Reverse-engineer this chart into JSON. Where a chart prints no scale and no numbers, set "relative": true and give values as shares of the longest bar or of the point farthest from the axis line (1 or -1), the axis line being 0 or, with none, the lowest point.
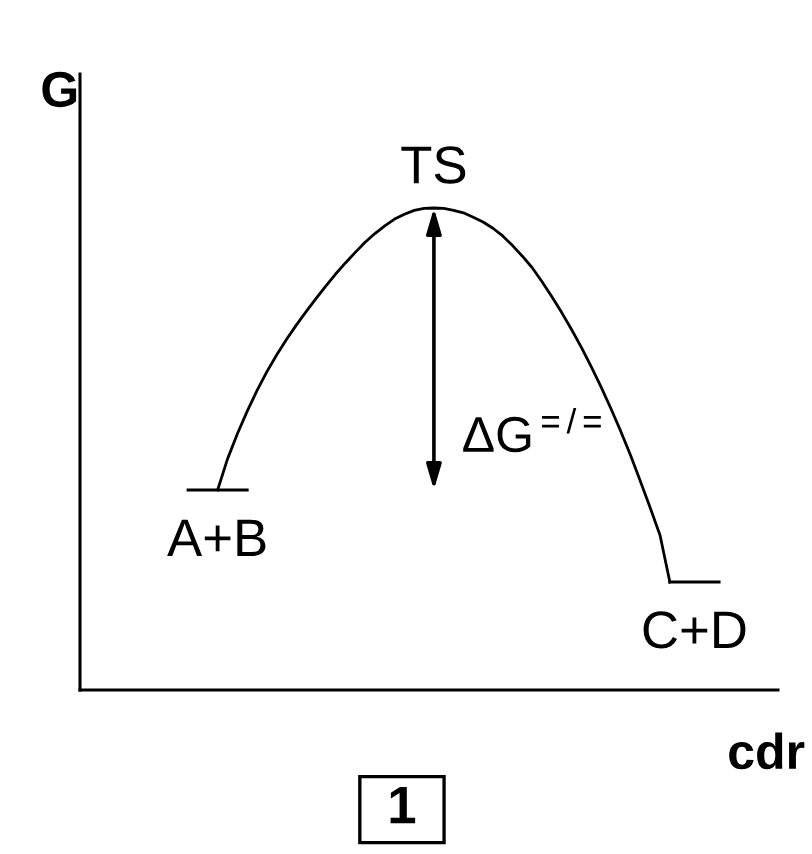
{
  "chart_data": {
    "type": "line",
    "relative": true,
    "ylabel": "G",
    "xlabel": "cdr",
    "categories": [
      null,
      null,
      null,
      null,
      null,
      null,
      null,
      null,
      null,
      null,
      null,
      null,
      null,
      null,
      null,
      null,
      null,
      null,
      null,
      null,
      null,
      null,
      null,
      null,
      null,
      null,
      null,
      null,
      null,
      null,
      null,
      null,
      null,
      null,
      null,
      null,
      null,
      null,
      null,
      null,
      null,
      null,
      null,
      null,
      null,
      null,
      null,
      null,
      null,
      null,
      null,
      null,
      null,
      null,
      null,
      null,
      null,
      null,
      null,
      null,
      null,
      null,
      null,
      null,
      null,
      null,
      null,
      null,
      null,
      null,
      null,
      null
    ],
    "series": [
      {
        "color": "#000000",
        "values": [
          null,
          null,
          null,
          null,
          null,
          null,
          null,
          null,
          null,
          null,
          null,
          null,
          null,
          null,
          0.415,
          0.479,
          0.531,
          0.578,
          0.621,
          0.66,
          0.695,
          0.727,
          0.757,
          0.785,
          0.812,
          0.838,
          0.863,
          0.886,
          0.908,
          0.929,
          0.947,
          0.963,
          0.977,
          0.987,
          0.995,
          0.999,
          1.0,
          0.999,
          0.995,
          0.99,
          0.981,
          0.971,
          0.958,
          0.942,
          0.922,
          0.9,
          0.876,
          0.847,
          0.816,
          0.783,
          0.748,
          0.711,
          0.671,
          0.629,
          0.584,
          0.537,
          0.487,
          0.433,
          0.378,
          0.321,
          0.224,
          null,
          null,
          null,
          null,
          null,
          null,
          null,
          null,
          null,
          null,
          null
        ]
      },
      {
        "name": "A+B",
        "color": "#000000",
        "values": [
          null,
          null,
          null,
          null,
          null,
          null,
          null,
          null,
          null,
          null,
          null,
          0.415,
          0.415,
          0.415,
          0.415,
          0.415,
          0.415,
          0.415,
          null,
          null,
          null,
          null,
          null,
          null,
          null,
          null,
          null,
          null,
          null,
          null,
          null,
          null,
          null,
          null,
          null,
          null,
          null,
          null,
          null,
          null,
          null,
          null,
          null,
          null,
          null,
          null,
          null,
          null,
          null,
          null,
          null,
          null,
          null,
          null,
          null,
          null,
          null,
          null,
          null,
          null,
          null,
          null,
          null,
          null,
          null,
          null,
          null,
          null,
          null,
          null,
          null,
          null
        ]
      },
      {
        "name": "C+D",
        "color": "#000000",
        "values": [
          null,
          null,
          null,
          null,
          null,
          null,
          null,
          null,
          null,
          null,
          null,
          null,
          null,
          null,
          null,
          null,
          null,
          null,
          null,
          null,
          null,
          null,
          null,
          null,
          null,
          null,
          null,
          null,
          null,
          null,
          null,
          null,
          null,
          null,
          null,
          null,
          null,
          null,
          null,
          null,
          null,
          null,
          null,
          null,
          null,
          null,
          null,
          null,
          null,
          null,
          null,
          null,
          null,
          null,
          null,
          null,
          null,
          null,
          null,
          null,
          0.224,
          0.224,
          0.224,
          0.224,
          0.224,
          0.224,
          null,
          null,
          null,
          null,
          null,
          null
        ]
      }
    ],
    "annotations": [
      {
        "text": "TS",
        "y": 1.0
      },
      "ΔG$^{=/=}$",
      "1"
    ]
  }
}
